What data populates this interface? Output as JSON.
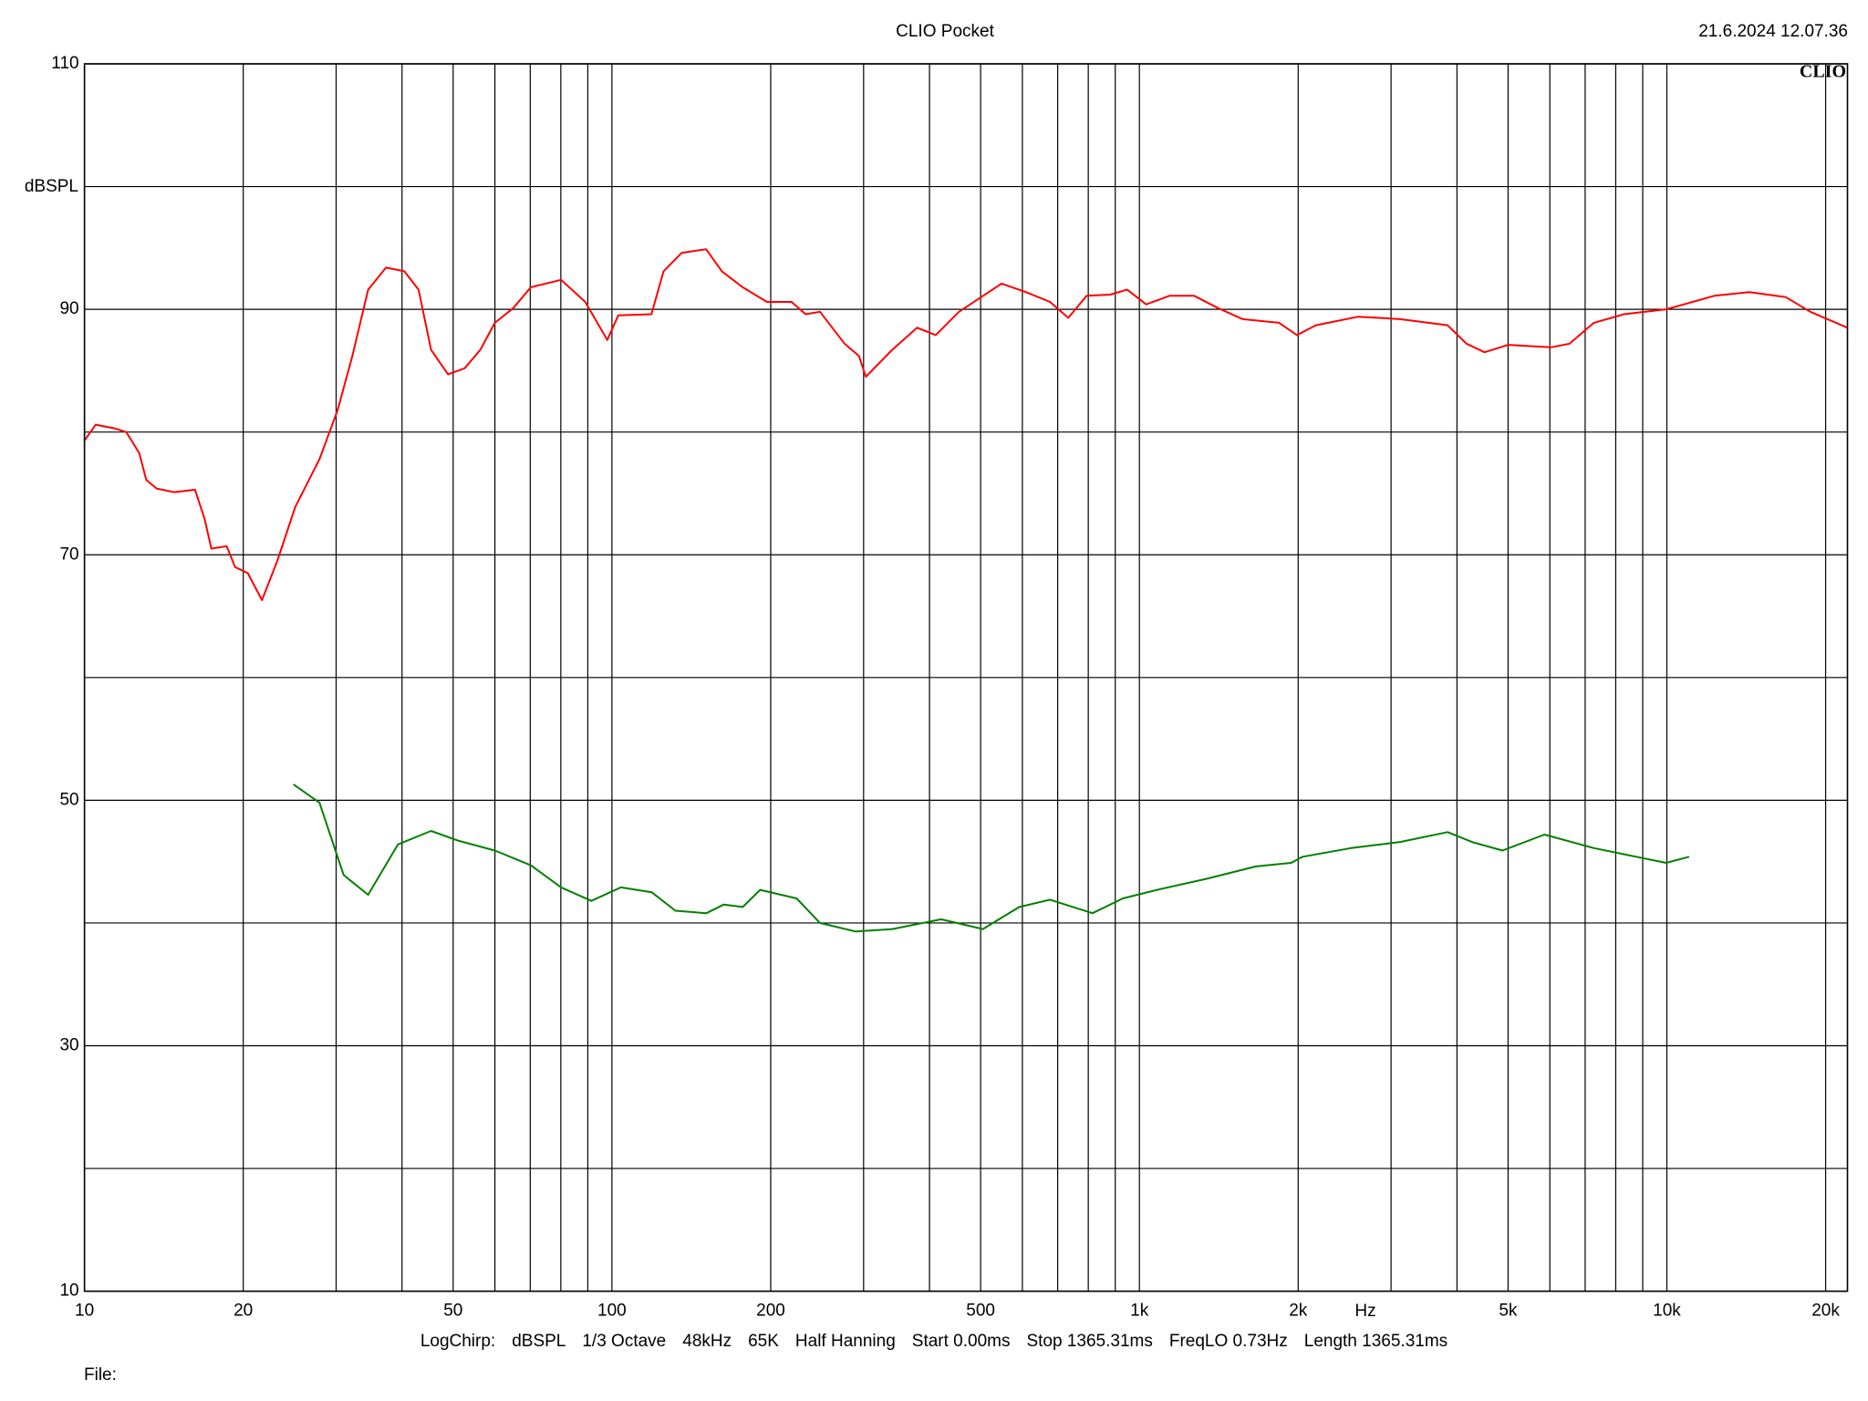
{
  "chart_data": {
    "type": "line",
    "title": "CLIO Pocket",
    "subtitle": "21.6.2024 12.07.36",
    "annotations": [
      "CLIO",
      "File:"
    ],
    "y_label": "dBSPL",
    "x_label": "Hz",
    "settings": [
      "LogChirp:",
      "dBSPL",
      "1/3 Octave",
      "48kHz",
      "65K",
      "Half Hanning",
      "Start 0.00ms",
      "Stop 1365.31ms",
      "FreqLO 0.73Hz",
      "Length 1365.31ms"
    ],
    "xscale": "log",
    "grid": true,
    "xlim": [
      10,
      22000
    ],
    "ylim": [
      10,
      110
    ],
    "xticks": [
      10,
      20,
      50,
      100,
      200,
      500,
      {
        "value": 1000,
        "label": "1k"
      },
      {
        "value": 2000,
        "label": "2k"
      },
      {
        "value": 5000,
        "label": "5k"
      },
      {
        "value": 10000,
        "label": "10k"
      },
      {
        "value": 20000,
        "label": "20k"
      }
    ],
    "xminor": [
      30,
      40,
      60,
      70,
      80,
      90,
      300,
      400,
      600,
      700,
      800,
      900,
      3000,
      4000,
      6000,
      7000,
      8000,
      9000
    ],
    "yticks": [
      10,
      30,
      50,
      70,
      90,
      110
    ],
    "yminor": [
      20,
      40,
      60,
      80,
      100
    ],
    "series": [
      {
        "color": "#ff0000",
        "x": [
          10,
          10.5,
          11.4,
          12.0,
          12.7,
          13.1,
          13.7,
          14.8,
          16.2,
          16.9,
          17.4,
          18.6,
          19.3,
          20.4,
          21.7,
          23.2,
          25.1,
          27.9,
          30.2,
          32.2,
          34.5,
          37.3,
          40.4,
          43.0,
          45.4,
          48.9,
          52.6,
          56.3,
          60.0,
          65.0,
          70.2,
          80.1,
          89.0,
          98.0,
          102.8,
          118.8,
          125.3,
          135.6,
          150.8,
          161.6,
          176.9,
          196.7,
          219,
          233,
          248,
          276,
          294,
          303,
          340,
          379,
          411,
          455,
          493,
          548,
          610,
          677,
          733,
          794,
          880,
          948,
          1030,
          1140,
          1270,
          1410,
          1570,
          1840,
          1990,
          2160,
          2600,
          3120,
          3840,
          4170,
          4510,
          5000,
          6030,
          6540,
          7270,
          8290,
          9970,
          12300,
          14340,
          16800,
          18700,
          22000
        ],
        "values": [
          79.3,
          80.6,
          80.3,
          80.0,
          78.3,
          76.1,
          75.4,
          75.1,
          75.3,
          72.9,
          70.5,
          70.7,
          69.0,
          68.5,
          66.3,
          69.5,
          73.9,
          77.8,
          81.8,
          86.2,
          91.6,
          93.4,
          93.1,
          91.6,
          86.7,
          84.7,
          85.2,
          86.7,
          88.9,
          90.1,
          91.8,
          92.4,
          90.6,
          87.5,
          89.5,
          89.6,
          93.1,
          94.6,
          94.9,
          93.1,
          91.8,
          90.6,
          90.6,
          89.6,
          89.8,
          87.2,
          86.2,
          84.5,
          86.7,
          88.5,
          87.9,
          89.8,
          90.8,
          92.1,
          91.4,
          90.6,
          89.3,
          91.1,
          91.2,
          91.6,
          90.4,
          91.1,
          91.1,
          90.1,
          89.2,
          88.9,
          87.9,
          88.7,
          89.4,
          89.2,
          88.7,
          87.2,
          86.5,
          87.1,
          86.9,
          87.2,
          88.9,
          89.6,
          90.0,
          91.1,
          91.4,
          91.0,
          89.8,
          88.5
        ]
      },
      {
        "color": "#008000",
        "x": [
          24.9,
          27.9,
          31.0,
          34.5,
          39.3,
          45.4,
          51.2,
          60.0,
          70.2,
          80.1,
          91.4,
          104,
          119,
          132,
          151,
          163,
          177,
          191,
          224,
          248,
          290,
          340,
          421,
          505,
          592,
          677,
          815,
          930,
          1080,
          1340,
          1660,
          1940,
          2040,
          2520,
          3120,
          3840,
          4270,
          4880,
          5860,
          7270,
          8740,
          9970,
          11020
        ],
        "values": [
          51.3,
          49.8,
          43.9,
          42.3,
          46.4,
          47.5,
          46.7,
          45.9,
          44.7,
          42.9,
          41.8,
          42.9,
          42.5,
          41.0,
          40.8,
          41.5,
          41.3,
          42.7,
          42.0,
          40.0,
          39.3,
          39.5,
          40.3,
          39.5,
          41.3,
          41.9,
          40.8,
          42.0,
          42.7,
          43.6,
          44.6,
          44.9,
          45.4,
          46.1,
          46.6,
          47.4,
          46.6,
          45.9,
          47.2,
          46.1,
          45.4,
          44.9,
          45.4
        ]
      }
    ]
  }
}
